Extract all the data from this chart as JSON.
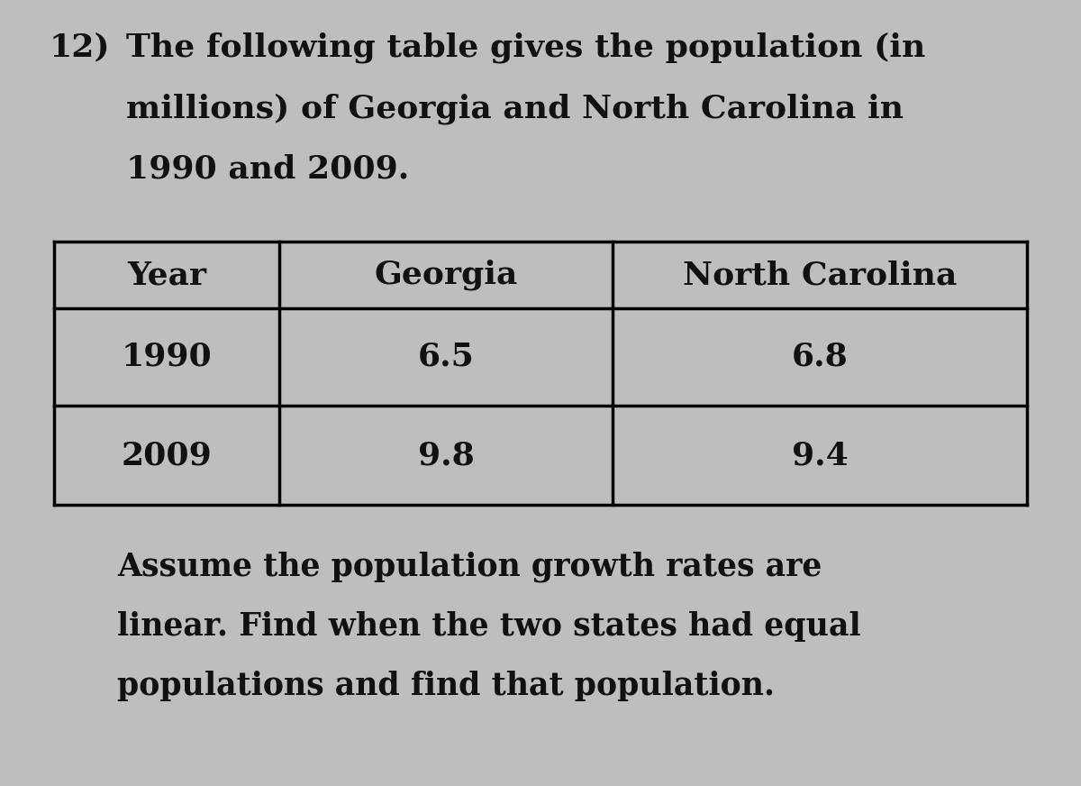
{
  "problem_number": "12)",
  "intro_line1": "The following table gives the population (in",
  "intro_line2": "millions) of Georgia and North Carolina in",
  "intro_line3": "1990 and 2009.",
  "table_headers": [
    "Year",
    "Georgia",
    "North Carolina"
  ],
  "table_rows": [
    [
      "1990",
      "6.5",
      "6.8"
    ],
    [
      "2009",
      "9.8",
      "9.4"
    ]
  ],
  "footer_line1": "Assume the population growth rates are",
  "footer_line2": "linear. Find when the two states had equal",
  "footer_line3": "populations and find that population.",
  "bg_color": "#bebebe",
  "text_color": "#111111",
  "font_size_intro": 26,
  "font_size_table_header": 26,
  "font_size_table_data": 26,
  "font_size_footer": 25,
  "fig_width": 12.0,
  "fig_height": 8.72,
  "dpi": 100
}
